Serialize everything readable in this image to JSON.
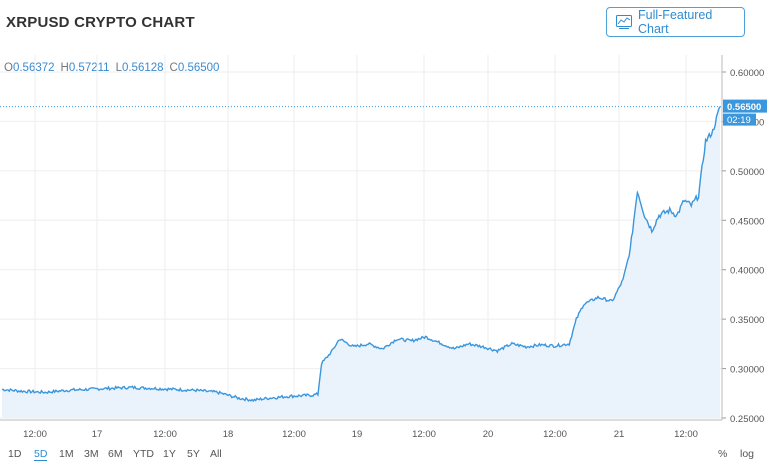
{
  "header": {
    "title": "XRPUSD CRYPTO CHART",
    "full_featured_label": "Full-Featured Chart",
    "icon": "chart-icon"
  },
  "ohlc": {
    "o_label": "O",
    "o_value": "0.56372",
    "h_label": "H",
    "h_value": "0.57211",
    "l_label": "L",
    "l_value": "0.56128",
    "c_label": "C",
    "c_value": "0.56500"
  },
  "toolbar": {
    "ranges": [
      "1D",
      "5D",
      "1M",
      "3M",
      "6M",
      "YTD",
      "1Y",
      "5Y",
      "All"
    ],
    "active_range": "5D",
    "percent_label": "%",
    "log_label": "log"
  },
  "colors": {
    "line": "#3a96dd",
    "fill": "#eaf3fb",
    "accent": "#2f8bd0",
    "grid": "#eeeeee"
  },
  "chart_data": {
    "type": "area",
    "symbol": "XRPUSD",
    "ylim": [
      0.25,
      0.6
    ],
    "y_ticks": [
      "0.60000",
      "0.55000",
      "0.50000",
      "0.45000",
      "0.40000",
      "0.35000",
      "0.30000",
      "0.25000"
    ],
    "x_tick_labels": [
      "12:00",
      "17",
      "12:00",
      "18",
      "12:00",
      "19",
      "12:00",
      "20",
      "12:00",
      "21",
      "12:00"
    ],
    "last_price_label": "0.56500",
    "countdown_label": "02:19",
    "last_price": 0.565,
    "series": [
      {
        "points": [
          [
            0,
            0.279
          ],
          [
            0.03,
            0.277
          ],
          [
            0.06,
            0.276
          ],
          [
            0.09,
            0.278
          ],
          [
            0.12,
            0.279
          ],
          [
            0.15,
            0.28
          ],
          [
            0.18,
            0.281
          ],
          [
            0.21,
            0.28
          ],
          [
            0.24,
            0.279
          ],
          [
            0.27,
            0.278
          ],
          [
            0.3,
            0.276
          ],
          [
            0.33,
            0.27
          ],
          [
            0.35,
            0.268
          ],
          [
            0.37,
            0.27
          ],
          [
            0.4,
            0.272
          ],
          [
            0.43,
            0.273
          ],
          [
            0.44,
            0.274
          ],
          [
            0.445,
            0.305
          ],
          [
            0.46,
            0.318
          ],
          [
            0.47,
            0.33
          ],
          [
            0.49,
            0.322
          ],
          [
            0.51,
            0.325
          ],
          [
            0.53,
            0.32
          ],
          [
            0.55,
            0.33
          ],
          [
            0.57,
            0.328
          ],
          [
            0.59,
            0.332
          ],
          [
            0.61,
            0.326
          ],
          [
            0.63,
            0.32
          ],
          [
            0.65,
            0.325
          ],
          [
            0.67,
            0.322
          ],
          [
            0.69,
            0.318
          ],
          [
            0.71,
            0.325
          ],
          [
            0.73,
            0.322
          ],
          [
            0.75,
            0.324
          ],
          [
            0.77,
            0.323
          ],
          [
            0.79,
            0.325
          ],
          [
            0.8,
            0.35
          ],
          [
            0.81,
            0.365
          ],
          [
            0.83,
            0.372
          ],
          [
            0.85,
            0.368
          ],
          [
            0.865,
            0.39
          ],
          [
            0.875,
            0.42
          ],
          [
            0.885,
            0.48
          ],
          [
            0.895,
            0.455
          ],
          [
            0.905,
            0.44
          ],
          [
            0.915,
            0.455
          ],
          [
            0.93,
            0.46
          ],
          [
            0.94,
            0.455
          ],
          [
            0.95,
            0.47
          ],
          [
            0.96,
            0.465
          ],
          [
            0.97,
            0.475
          ],
          [
            0.98,
            0.53
          ],
          [
            0.99,
            0.54
          ],
          [
            1.0,
            0.565
          ]
        ]
      }
    ]
  }
}
